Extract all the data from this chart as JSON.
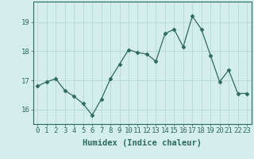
{
  "xlabel": "Humidex (Indice chaleur)",
  "x": [
    0,
    1,
    2,
    3,
    4,
    5,
    6,
    7,
    8,
    9,
    10,
    11,
    12,
    13,
    14,
    15,
    16,
    17,
    18,
    19,
    20,
    21,
    22,
    23
  ],
  "y": [
    16.8,
    16.95,
    17.05,
    16.65,
    16.45,
    16.2,
    15.8,
    16.35,
    17.05,
    17.55,
    18.05,
    17.95,
    17.9,
    17.65,
    18.6,
    18.75,
    18.15,
    19.2,
    18.75,
    17.85,
    16.95,
    17.35,
    16.55,
    16.55
  ],
  "line_color": "#2e6b5e",
  "marker": "D",
  "marker_size": 2.5,
  "bg_color": "#d4eeeb",
  "grid_color": "#b8d8d4",
  "ylim": [
    15.5,
    19.7
  ],
  "xlim": [
    -0.5,
    23.5
  ],
  "yticks": [
    16,
    17,
    18,
    19
  ],
  "xticks": [
    0,
    1,
    2,
    3,
    4,
    5,
    6,
    7,
    8,
    9,
    10,
    11,
    12,
    13,
    14,
    15,
    16,
    17,
    18,
    19,
    20,
    21,
    22,
    23
  ],
  "tick_color": "#2e6b5e",
  "axis_color": "#2e6b5e",
  "xlabel_fontsize": 7.5,
  "tick_fontsize": 6.5
}
